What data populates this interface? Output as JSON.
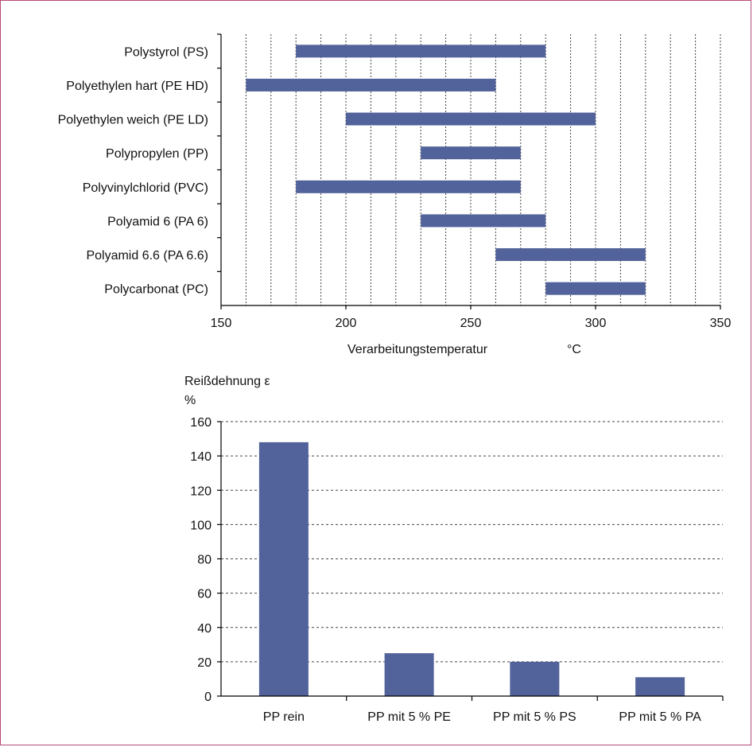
{
  "colors": {
    "bar": "#52629a",
    "frame": "#b64a78"
  },
  "chart_data": [
    {
      "type": "bar",
      "orientation": "horizontal",
      "xlabel": "Verarbeitungstemperatur",
      "xunit": "°C",
      "xlim": [
        150,
        350
      ],
      "xticks": [
        "150",
        "200",
        "250",
        "300",
        "350"
      ],
      "grid": "vertical dotted every 10",
      "categories": [
        "Polystyrol (PS)",
        "Polyethylen hart (PE HD)",
        "Polyethylen weich (PE LD)",
        "Polypropylen (PP)",
        "Polyvinylchlorid (PVC)",
        "Polyamid 6 (PA 6)",
        "Polyamid 6.6 (PA 6.6)",
        "Polycarbonat (PC)"
      ],
      "ranges": [
        [
          180,
          280
        ],
        [
          160,
          260
        ],
        [
          200,
          300
        ],
        [
          230,
          270
        ],
        [
          180,
          270
        ],
        [
          230,
          280
        ],
        [
          260,
          320
        ],
        [
          280,
          320
        ]
      ]
    },
    {
      "type": "bar",
      "ylabel": "Reißdehnung ε",
      "yunit": "%",
      "ylim": [
        0,
        160
      ],
      "yticks": [
        "0",
        "20",
        "40",
        "60",
        "80",
        "100",
        "120",
        "140",
        "160"
      ],
      "grid": "horizontal dashed",
      "categories": [
        "PP rein",
        "PP mit 5 % PE",
        "PP mit 5 % PS",
        "PP mit 5 % PA"
      ],
      "values": [
        148,
        25,
        20,
        11
      ]
    }
  ]
}
